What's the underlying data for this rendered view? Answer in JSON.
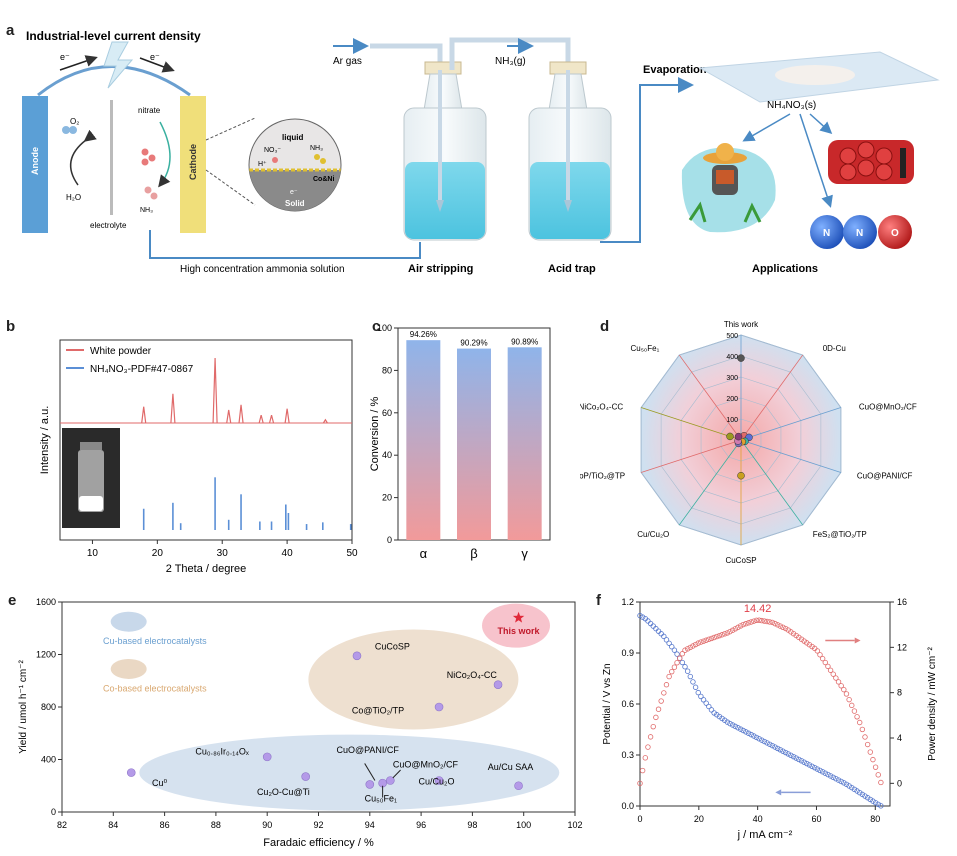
{
  "panel_a": {
    "label": "a",
    "title": "Industrial-level current density",
    "electron_left": "e⁻",
    "electron_right": "e⁻",
    "anode": "Anode",
    "cathode": "Cathode",
    "o2": "O₂",
    "h2o": "H₂O",
    "electrolyte": "electrolyte",
    "nitrate": "nitrate",
    "nh3": "NH₃",
    "liquid": "liquid",
    "solid": "Solid",
    "no3": "NO₃⁻",
    "hplus": "H⁺",
    "nh3_inset": "NH₃",
    "e_inset": "e⁻",
    "coni": "Co&Ni",
    "ar_gas": "Ar gas",
    "nh3_gas": "NH₃(g)",
    "solution": "High concentration ammonia solution",
    "air_stripping": "Air stripping",
    "acid_trap": "Acid trap",
    "evaporation": "Evaporation",
    "nh4no3": "NH₄NO₃(s)",
    "applications": "Applications",
    "ball_n1": "N",
    "ball_n2": "N",
    "ball_o": "O"
  },
  "panel_b": {
    "label": "b",
    "legend": [
      "White powder",
      "NH₄NO₃-PDF#47-0867"
    ],
    "xlabel": "2 Theta / degree",
    "ylabel": "Intensity / a.u."
  },
  "panel_c": {
    "label": "c",
    "ylabel": "Conversion / %"
  },
  "panel_d": {
    "label": "d",
    "labels": [
      "This work",
      "0D-Cu",
      "CuO@MnO₂/CF",
      "CuO@PANI/CF",
      "FeS₂@TiO₂/TP",
      "CuCoSP",
      "Cu/Cu₂O",
      "CoP/TiO₂@TP",
      "NiCo₂O₄-CC",
      "Cu₅₀Fe₁"
    ],
    "ticks": [
      "100",
      "200",
      "300",
      "400",
      "500"
    ]
  },
  "panel_e": {
    "label": "e",
    "legend_cu": "Cu-based electrocatalysts",
    "legend_co": "Co-based electrocatalysts",
    "this_work": "This work",
    "xlabel": "Faradaic efficiency / %",
    "ylabel": "Yield / umol h⁻¹ cm⁻²",
    "point_labels": {
      "CuCoSP": "CuCoSP",
      "NiCo2O4": "NiCo₂O₄-CC",
      "CoTiO2": "Co@TiO₂/TP",
      "CuIr": "Cu₀.₈₆Ir₀.₁₄Oₓ",
      "CuPANI": "CuO@PANI/CF",
      "CuMnO2": "CuO@MnO₂/CF",
      "Cu0": "Cu⁰",
      "Cu2OCuTi": "Cu₂O-Cu@Ti",
      "CuCu2O": "Cu/Cu₂O",
      "AuCu": "Au/Cu SAA",
      "Cu50Fe1": "Cu₅₀Fe₁"
    }
  },
  "panel_f": {
    "label": "f",
    "peak_label": "14.42",
    "xlabel": "j / mA cm⁻²",
    "ylabel_left": "Potential / V vs Zn",
    "ylabel_right": "Power density / mW cm⁻²"
  },
  "chart_data": [
    {
      "type": "line",
      "panel": "b",
      "xlabel": "2 Theta / degree",
      "ylabel": "Intensity / a.u.",
      "xlim": [
        5,
        50
      ],
      "xticks": [
        10,
        20,
        30,
        40,
        50
      ],
      "series": [
        {
          "name": "White powder",
          "color": "#e06a6a",
          "x": [
            17.9,
            22.4,
            28.9,
            31.0,
            32.9,
            36.0,
            37.6,
            40.0,
            45.9
          ],
          "y": [
            25,
            45,
            100,
            20,
            28,
            12,
            12,
            22,
            5
          ]
        },
        {
          "name": "NH₄NO₃-PDF#47-0867",
          "color": "#5b8fd6",
          "x": [
            17.9,
            22.4,
            23.6,
            28.9,
            31.0,
            32.9,
            35.8,
            37.6,
            39.8,
            40.2,
            43.0,
            45.5,
            49.8
          ],
          "y": [
            25,
            32,
            8,
            62,
            12,
            42,
            10,
            10,
            30,
            20,
            7,
            9,
            7
          ]
        }
      ]
    },
    {
      "type": "bar",
      "panel": "c",
      "categories": [
        "α",
        "β",
        "γ"
      ],
      "values": [
        94.26,
        90.29,
        90.89
      ],
      "data_labels": [
        "94.26%",
        "90.29%",
        "90.89%"
      ],
      "ylabel": "Conversion / %",
      "ylim": [
        0,
        100
      ],
      "yticks": [
        0,
        20,
        40,
        60,
        80,
        100
      ]
    },
    {
      "type": "radar",
      "panel": "d",
      "axes": [
        "This work",
        "0D-Cu",
        "CuO@MnO₂/CF",
        "CuO@PANI/CF",
        "FeS₂@TiO₂/TP",
        "CuCoSP",
        "Cu/Cu₂O",
        "CoP/TiO₂@TP",
        "NiCo₂O₄-CC",
        "Cu₅₀Fe₁"
      ],
      "values": [
        390,
        25,
        40,
        20,
        10,
        170,
        20,
        15,
        55,
        20
      ],
      "colors": [
        "#555555",
        "#e06a6a",
        "#5b6fd6",
        "#3ab0a0",
        "#e0a030",
        "#c9a020",
        "#7a6fc0",
        "#d07ab0",
        "#9a9a20",
        "#8a3a7a"
      ],
      "rmax": 500,
      "rticks": [
        100,
        200,
        300,
        400,
        500
      ]
    },
    {
      "type": "scatter",
      "panel": "e",
      "xlabel": "Faradaic efficiency / %",
      "ylabel": "Yield / umol h⁻¹ cm⁻²",
      "xlim": [
        82,
        102
      ],
      "ylim": [
        0,
        1600
      ],
      "xticks": [
        82,
        84,
        86,
        88,
        90,
        92,
        94,
        96,
        98,
        100,
        102
      ],
      "yticks": [
        0,
        400,
        800,
        1200,
        1600
      ],
      "points": [
        {
          "name": "This work",
          "x": 99.8,
          "y": 1480
        },
        {
          "name": "CuCoSP",
          "x": 93.5,
          "y": 1190
        },
        {
          "name": "NiCo₂O₄-CC",
          "x": 99.0,
          "y": 970
        },
        {
          "name": "Co@TiO₂/TP",
          "x": 96.7,
          "y": 800
        },
        {
          "name": "Cu₀.₈₆Ir₀.₁₄Oₓ",
          "x": 90.0,
          "y": 420
        },
        {
          "name": "Cu⁰",
          "x": 84.7,
          "y": 300
        },
        {
          "name": "Cu₂O-Cu@Ti",
          "x": 91.5,
          "y": 270
        },
        {
          "name": "CuO@PANI/CF",
          "x": 94.0,
          "y": 210
        },
        {
          "name": "CuO@MnO₂/CF",
          "x": 94.8,
          "y": 240
        },
        {
          "name": "Cu₅₀Fe₁",
          "x": 94.5,
          "y": 220
        },
        {
          "name": "Cu/Cu₂O",
          "x": 96.7,
          "y": 240
        },
        {
          "name": "Au/Cu SAA",
          "x": 99.8,
          "y": 200
        }
      ]
    },
    {
      "type": "line",
      "panel": "f",
      "xlabel": "j / mA cm⁻²",
      "ylabel": "Potential / V vs Zn",
      "y2label": "Power density / mW cm⁻²",
      "xlim": [
        0,
        85
      ],
      "xticks": [
        0,
        20,
        40,
        60,
        80
      ],
      "ylim": [
        0,
        1.2
      ],
      "yticks": [
        0.0,
        0.3,
        0.6,
        0.9,
        1.2
      ],
      "y2lim": [
        -2,
        16
      ],
      "y2ticks": [
        0,
        4,
        8,
        12,
        16
      ],
      "series": [
        {
          "name": "Potential",
          "axis": "left",
          "color": "#5577cc",
          "x": [
            0,
            2,
            5,
            8,
            12,
            16,
            20,
            25,
            30,
            40,
            50,
            60,
            70,
            80,
            82
          ],
          "y": [
            1.12,
            1.1,
            1.05,
            1.0,
            0.91,
            0.8,
            0.66,
            0.55,
            0.49,
            0.4,
            0.31,
            0.22,
            0.13,
            0.02,
            0.0
          ]
        },
        {
          "name": "Power density",
          "axis": "right",
          "color": "#e06a6a",
          "x": [
            0,
            2,
            5,
            10,
            15,
            20,
            30,
            35,
            40,
            45,
            50,
            60,
            70,
            75,
            80,
            82
          ],
          "y": [
            0,
            2.5,
            5.5,
            9.5,
            11.7,
            12.4,
            13.3,
            14.0,
            14.42,
            14.2,
            13.6,
            11.8,
            8.0,
            5.2,
            1.5,
            0
          ]
        }
      ],
      "annotation": {
        "text": "14.42",
        "x": 40,
        "y": 14.42
      }
    }
  ]
}
